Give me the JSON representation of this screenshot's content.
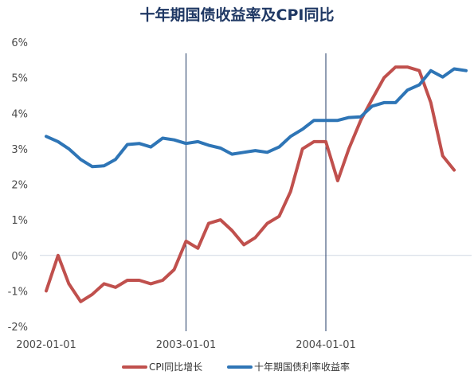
{
  "chart_data": {
    "type": "line",
    "title": "十年期国债收益率及CPI同比",
    "xlabel": "",
    "ylabel": "",
    "ylim": [
      -2,
      6
    ],
    "yticks": [
      -2,
      -1,
      0,
      1,
      2,
      3,
      4,
      5,
      6
    ],
    "ytick_labels": [
      "-2%",
      "-1%",
      "0%",
      "1%",
      "2%",
      "3%",
      "4%",
      "5%",
      "6%"
    ],
    "xticks": [
      "2002-01-01",
      "2003-01-01",
      "2004-01-01"
    ],
    "reference_lines": [
      "2003-01-01",
      "2004-01-01"
    ],
    "grid": false,
    "legend": "bottom",
    "series": [
      {
        "name": "CPI同比增长",
        "color": "#c0504d",
        "x": [
          "2002-01-01",
          "2002-02-01",
          "2002-03-01",
          "2002-04-01",
          "2002-05-01",
          "2002-06-01",
          "2002-07-01",
          "2002-08-01",
          "2002-09-01",
          "2002-10-01",
          "2002-11-01",
          "2002-12-01",
          "2003-01-01",
          "2003-02-01",
          "2003-03-01",
          "2003-04-01",
          "2003-05-01",
          "2003-06-01",
          "2003-07-01",
          "2003-08-01",
          "2003-09-01",
          "2003-10-01",
          "2003-11-01",
          "2003-12-01",
          "2004-01-01",
          "2004-02-01",
          "2004-03-01",
          "2004-04-01",
          "2004-05-01",
          "2004-06-01",
          "2004-07-01",
          "2004-08-01",
          "2004-09-01",
          "2004-10-01",
          "2004-11-01",
          "2004-12-01"
        ],
        "values": [
          -1.0,
          0.0,
          -0.8,
          -1.3,
          -1.1,
          -0.8,
          -0.9,
          -0.7,
          -0.7,
          -0.8,
          -0.7,
          -0.4,
          0.4,
          0.2,
          0.9,
          1.0,
          0.7,
          0.3,
          0.5,
          0.9,
          1.1,
          1.8,
          3.0,
          3.2,
          3.2,
          2.1,
          3.0,
          3.8,
          4.4,
          5.0,
          5.3,
          5.3,
          5.2,
          4.3,
          2.8,
          2.4
        ]
      },
      {
        "name": "十年期国债利率收益率",
        "color": "#2e75b6",
        "x": [
          "2002-01-01",
          "2002-02-01",
          "2002-03-01",
          "2002-04-01",
          "2002-05-01",
          "2002-06-01",
          "2002-07-01",
          "2002-08-01",
          "2002-09-01",
          "2002-10-01",
          "2002-11-01",
          "2002-12-01",
          "2003-01-01",
          "2003-02-01",
          "2003-03-01",
          "2003-04-01",
          "2003-05-01",
          "2003-06-01",
          "2003-07-01",
          "2003-08-01",
          "2003-09-01",
          "2003-10-01",
          "2003-11-01",
          "2003-12-01",
          "2004-01-01",
          "2004-02-01",
          "2004-03-01",
          "2004-04-01",
          "2004-05-01",
          "2004-06-01",
          "2004-07-01",
          "2004-08-01",
          "2004-09-01",
          "2004-10-01",
          "2004-11-01",
          "2004-12-01",
          "2005-01-01"
        ],
        "values": [
          3.35,
          3.2,
          3.0,
          2.7,
          2.5,
          2.52,
          2.7,
          3.12,
          3.15,
          3.05,
          3.3,
          3.25,
          3.15,
          3.2,
          3.1,
          3.02,
          2.85,
          2.9,
          2.95,
          2.9,
          3.05,
          3.35,
          3.55,
          3.8,
          3.8,
          3.8,
          3.88,
          3.9,
          4.2,
          4.3,
          4.3,
          4.65,
          4.8,
          5.2,
          5.02,
          5.25,
          5.2
        ]
      }
    ]
  }
}
